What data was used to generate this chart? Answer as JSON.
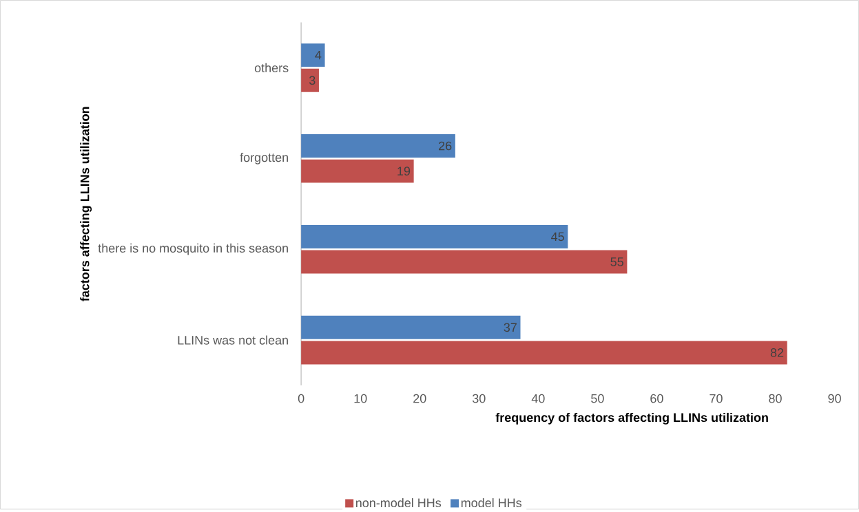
{
  "chart_data": {
    "type": "bar",
    "orientation": "horizontal",
    "xlabel": "frequency of factors affecting LLINs utilization",
    "ylabel": "factors affecting LLINs utilization",
    "categories": [
      "others",
      "forgotten",
      "there is no mosquito in this season",
      "LLINs was not clean"
    ],
    "series": [
      {
        "name": "non-model HHs",
        "color": "#c0504d",
        "values": [
          3,
          19,
          55,
          82
        ]
      },
      {
        "name": "model HHs",
        "color": "#4f81bd",
        "values": [
          4,
          26,
          45,
          37
        ]
      }
    ],
    "xlim": [
      0,
      90
    ],
    "xticks": [
      0,
      10,
      20,
      30,
      40,
      50,
      60,
      70,
      80,
      90
    ],
    "data_labels": true,
    "legend": "bottom"
  }
}
